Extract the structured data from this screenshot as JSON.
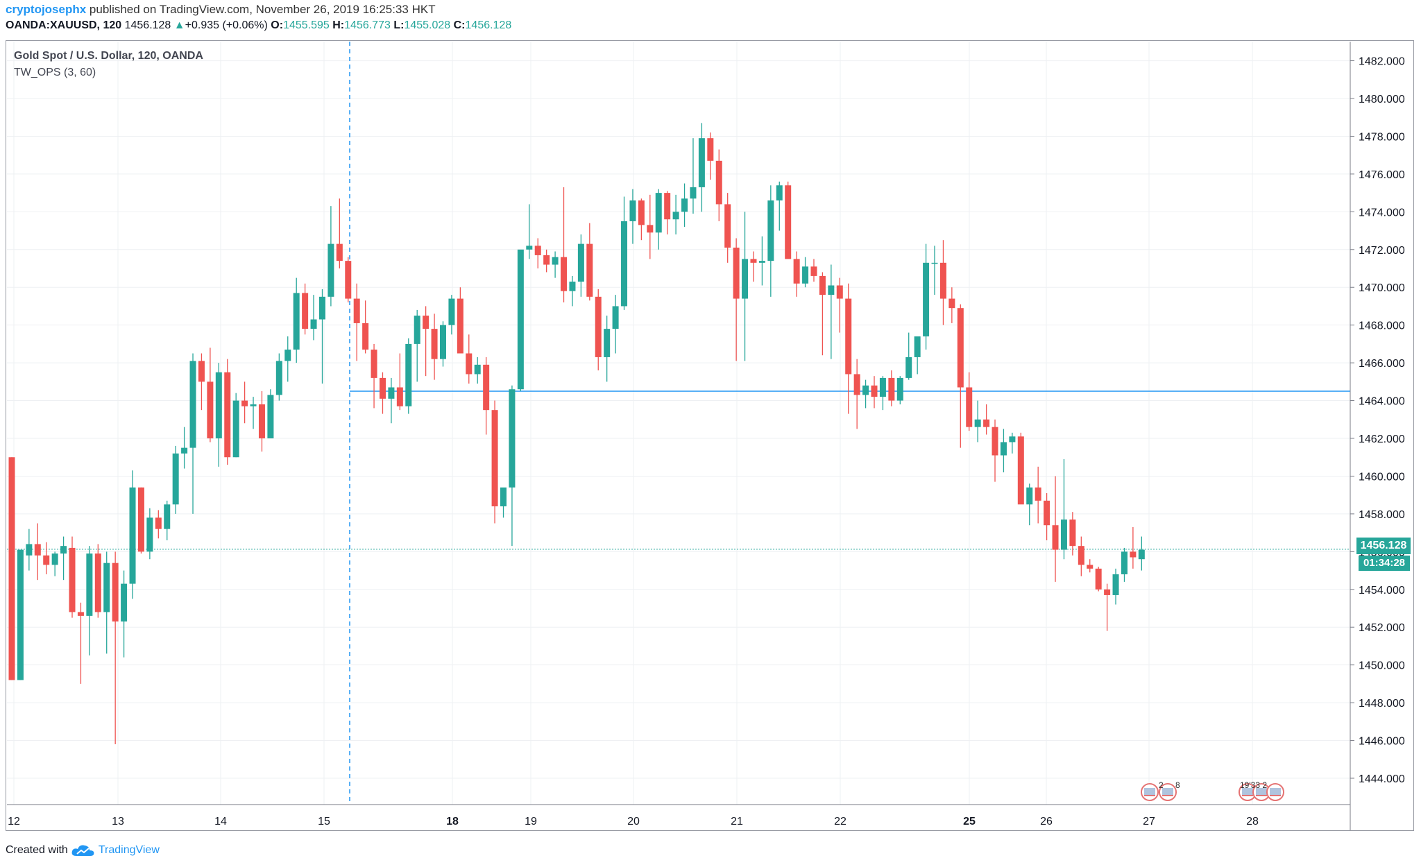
{
  "header": {
    "user": "cryptojosephx",
    "published": " published on TradingView.com, November 26, 2019 16:25:33 HKT",
    "symbol": "OANDA:XAUUSD, 120",
    "last": "1456.128",
    "change_arrow": "▲",
    "change": "+0.935 (+0.06%)",
    "o_label": "O:",
    "o_value": "1455.595",
    "h_label": "H:",
    "h_value": "1456.773",
    "l_label": "L:",
    "l_value": "1455.028",
    "c_label": "C:",
    "c_value": "1456.128"
  },
  "legend": {
    "title": "Gold Spot / U.S. Dollar, 120, OANDA",
    "indicator": "TW_OPS (3, 60)"
  },
  "price_tag": "1456.128",
  "timer_tag": "01:34:28",
  "events": [
    "2",
    "8",
    "19'33 2"
  ],
  "footer": {
    "created_with": "Created with",
    "brand": "TradingView"
  },
  "colors": {
    "up": "#26a69a",
    "down": "#ef5350",
    "line": "#2196f3",
    "grid": "#eef0f3"
  },
  "chart_data": {
    "type": "candlestick",
    "title": "Gold Spot / U.S. Dollar, 120, OANDA",
    "ylim": [
      1442,
      1482.5
    ],
    "y_ticks": [
      "1444.000",
      "1446.000",
      "1448.000",
      "1450.000",
      "1452.000",
      "1454.000",
      "1456.000",
      "1458.000",
      "1460.000",
      "1462.000",
      "1464.000",
      "1466.000",
      "1468.000",
      "1470.000",
      "1472.000",
      "1474.000",
      "1476.000",
      "1478.000",
      "1480.000",
      "1482.000"
    ],
    "x_ticks": [
      "12",
      "13",
      "14",
      "15",
      "18",
      "19",
      "20",
      "21",
      "22",
      "25",
      "26",
      "27",
      "28"
    ],
    "horizontal_levels": [
      1464.5,
      1456.128
    ],
    "candles": [
      [
        1461.0,
        1461.0,
        1449.2,
        1449.2
      ],
      [
        1449.2,
        1456.1,
        1449.2,
        1456.1
      ],
      [
        1455.8,
        1457.2,
        1455.0,
        1456.4
      ],
      [
        1456.4,
        1457.5,
        1454.5,
        1455.8
      ],
      [
        1455.8,
        1456.5,
        1454.8,
        1455.3
      ],
      [
        1455.3,
        1456.0,
        1454.7,
        1455.9
      ],
      [
        1455.9,
        1456.8,
        1454.5,
        1456.3
      ],
      [
        1456.2,
        1456.8,
        1452.5,
        1452.8
      ],
      [
        1452.8,
        1453.3,
        1449.0,
        1452.6
      ],
      [
        1452.6,
        1456.3,
        1450.5,
        1455.9
      ],
      [
        1455.9,
        1456.4,
        1452.5,
        1452.8
      ],
      [
        1452.8,
        1456.0,
        1450.6,
        1455.4
      ],
      [
        1455.4,
        1456.0,
        1445.8,
        1452.3
      ],
      [
        1452.3,
        1455.0,
        1450.4,
        1454.3
      ],
      [
        1454.3,
        1460.3,
        1453.5,
        1459.4
      ],
      [
        1459.4,
        1459.4,
        1455.9,
        1456.0
      ],
      [
        1456.0,
        1458.3,
        1455.6,
        1457.8
      ],
      [
        1457.8,
        1458.2,
        1456.7,
        1457.2
      ],
      [
        1457.2,
        1458.7,
        1456.6,
        1458.5
      ],
      [
        1458.5,
        1461.6,
        1458.0,
        1461.2
      ],
      [
        1461.2,
        1462.6,
        1460.4,
        1461.5
      ],
      [
        1461.5,
        1466.5,
        1458.0,
        1466.1
      ],
      [
        1466.1,
        1466.5,
        1463.5,
        1465.0
      ],
      [
        1465.0,
        1466.8,
        1461.8,
        1462.0
      ],
      [
        1462.0,
        1466.0,
        1460.5,
        1465.5
      ],
      [
        1465.5,
        1466.2,
        1460.6,
        1461.0
      ],
      [
        1461.0,
        1464.4,
        1461.0,
        1464.0
      ],
      [
        1464.0,
        1465.0,
        1462.8,
        1463.7
      ],
      [
        1463.7,
        1464.2,
        1462.5,
        1463.8
      ],
      [
        1463.8,
        1464.5,
        1461.3,
        1462.0
      ],
      [
        1462.0,
        1464.6,
        1462.0,
        1464.3
      ],
      [
        1464.3,
        1466.5,
        1464.0,
        1466.1
      ],
      [
        1466.1,
        1467.4,
        1465.0,
        1466.7
      ],
      [
        1466.7,
        1470.5,
        1466.0,
        1469.7
      ],
      [
        1469.7,
        1470.2,
        1467.5,
        1467.8
      ],
      [
        1467.8,
        1469.6,
        1467.2,
        1468.3
      ],
      [
        1468.3,
        1469.9,
        1464.9,
        1469.5
      ],
      [
        1469.5,
        1474.3,
        1469.0,
        1472.3
      ],
      [
        1472.3,
        1474.7,
        1471.0,
        1471.4
      ],
      [
        1471.4,
        1471.6,
        1469.2,
        1469.4
      ],
      [
        1469.4,
        1470.2,
        1466.1,
        1468.1
      ],
      [
        1468.1,
        1469.3,
        1466.5,
        1466.7
      ],
      [
        1466.7,
        1467.0,
        1463.6,
        1465.2
      ],
      [
        1465.2,
        1465.5,
        1463.3,
        1464.1
      ],
      [
        1464.1,
        1465.2,
        1462.8,
        1464.7
      ],
      [
        1464.7,
        1466.5,
        1463.5,
        1463.7
      ],
      [
        1463.7,
        1467.3,
        1463.3,
        1467.0
      ],
      [
        1467.0,
        1468.8,
        1465.0,
        1468.5
      ],
      [
        1468.5,
        1469.0,
        1465.3,
        1467.8
      ],
      [
        1467.8,
        1468.6,
        1465.1,
        1466.2
      ],
      [
        1466.2,
        1468.2,
        1465.8,
        1468.0
      ],
      [
        1468.0,
        1469.6,
        1467.5,
        1469.4
      ],
      [
        1469.4,
        1470.0,
        1466.8,
        1466.5
      ],
      [
        1466.5,
        1467.5,
        1464.9,
        1465.4
      ],
      [
        1465.4,
        1466.3,
        1464.9,
        1465.9
      ],
      [
        1465.9,
        1466.3,
        1462.2,
        1463.5
      ],
      [
        1463.5,
        1464.0,
        1457.5,
        1458.4
      ],
      [
        1458.4,
        1459.2,
        1457.8,
        1459.4
      ],
      [
        1459.4,
        1464.8,
        1456.3,
        1464.6
      ],
      [
        1464.6,
        1471.6,
        1464.5,
        1472.0
      ],
      [
        1472.0,
        1474.4,
        1471.5,
        1472.2
      ],
      [
        1472.2,
        1472.6,
        1471.0,
        1471.7
      ],
      [
        1471.7,
        1472.0,
        1470.8,
        1471.2
      ],
      [
        1471.2,
        1471.9,
        1470.5,
        1471.6
      ],
      [
        1471.6,
        1475.3,
        1469.2,
        1469.8
      ],
      [
        1469.8,
        1470.6,
        1469.0,
        1470.3
      ],
      [
        1470.3,
        1472.8,
        1469.5,
        1472.3
      ],
      [
        1472.3,
        1473.4,
        1469.3,
        1469.5
      ],
      [
        1469.5,
        1469.9,
        1465.6,
        1466.3
      ],
      [
        1466.3,
        1468.5,
        1465.0,
        1467.8
      ],
      [
        1467.8,
        1469.6,
        1466.5,
        1469.0
      ],
      [
        1469.0,
        1474.8,
        1468.8,
        1473.5
      ],
      [
        1473.5,
        1475.2,
        1472.3,
        1474.6
      ],
      [
        1474.6,
        1474.7,
        1472.5,
        1473.3
      ],
      [
        1473.3,
        1474.9,
        1471.5,
        1472.9
      ],
      [
        1472.9,
        1475.2,
        1472.0,
        1475.0
      ],
      [
        1475.0,
        1475.1,
        1472.8,
        1473.6
      ],
      [
        1473.6,
        1474.9,
        1472.8,
        1474.0
      ],
      [
        1474.0,
        1475.5,
        1473.2,
        1474.7
      ],
      [
        1474.7,
        1477.9,
        1473.9,
        1475.3
      ],
      [
        1475.3,
        1478.7,
        1474.0,
        1477.9
      ],
      [
        1477.9,
        1478.2,
        1475.7,
        1476.7
      ],
      [
        1476.7,
        1477.3,
        1473.5,
        1474.4
      ],
      [
        1474.4,
        1475.0,
        1471.3,
        1472.1
      ],
      [
        1472.1,
        1472.6,
        1466.1,
        1469.4
      ],
      [
        1469.4,
        1474.0,
        1466.1,
        1471.5
      ],
      [
        1471.5,
        1471.9,
        1470.3,
        1471.3
      ],
      [
        1471.3,
        1472.7,
        1470.1,
        1471.4
      ],
      [
        1471.4,
        1475.4,
        1469.5,
        1474.6
      ],
      [
        1474.6,
        1475.6,
        1473.0,
        1475.4
      ],
      [
        1475.4,
        1475.6,
        1471.6,
        1471.5
      ],
      [
        1471.5,
        1471.9,
        1469.5,
        1470.2
      ],
      [
        1470.2,
        1471.6,
        1470.0,
        1471.1
      ],
      [
        1471.1,
        1471.5,
        1470.3,
        1470.6
      ],
      [
        1470.6,
        1470.8,
        1466.4,
        1469.6
      ],
      [
        1469.6,
        1471.2,
        1466.2,
        1470.1
      ],
      [
        1470.1,
        1470.5,
        1467.6,
        1469.4
      ],
      [
        1469.4,
        1470.2,
        1463.3,
        1465.4
      ],
      [
        1465.4,
        1466.2,
        1462.5,
        1464.3
      ],
      [
        1464.3,
        1465.1,
        1463.6,
        1464.8
      ],
      [
        1464.8,
        1465.3,
        1463.6,
        1464.2
      ],
      [
        1464.2,
        1465.3,
        1463.5,
        1465.2
      ],
      [
        1465.2,
        1465.6,
        1463.7,
        1464.0
      ],
      [
        1464.0,
        1465.3,
        1463.8,
        1465.2
      ],
      [
        1465.2,
        1467.6,
        1465.1,
        1466.3
      ],
      [
        1466.3,
        1467.2,
        1465.4,
        1467.4
      ],
      [
        1467.4,
        1472.3,
        1466.7,
        1471.3
      ],
      [
        1471.3,
        1472.2,
        1469.6,
        1471.3
      ],
      [
        1471.3,
        1472.5,
        1468.0,
        1469.4
      ],
      [
        1469.4,
        1470.0,
        1468.1,
        1468.9
      ],
      [
        1468.9,
        1469.1,
        1461.5,
        1464.7
      ],
      [
        1464.7,
        1465.5,
        1462.4,
        1462.6
      ],
      [
        1462.6,
        1464.0,
        1461.8,
        1463.0
      ],
      [
        1463.0,
        1463.8,
        1462.2,
        1462.6
      ],
      [
        1462.6,
        1463.0,
        1459.7,
        1461.1
      ],
      [
        1461.1,
        1462.5,
        1460.2,
        1461.8
      ],
      [
        1461.8,
        1462.3,
        1461.2,
        1462.1
      ],
      [
        1462.1,
        1462.3,
        1458.6,
        1458.5
      ],
      [
        1458.5,
        1459.6,
        1457.4,
        1459.4
      ],
      [
        1459.4,
        1460.5,
        1457.5,
        1458.7
      ],
      [
        1458.7,
        1459.1,
        1456.6,
        1457.4
      ],
      [
        1457.4,
        1460.0,
        1454.4,
        1456.1
      ],
      [
        1456.1,
        1460.9,
        1455.6,
        1457.7
      ],
      [
        1457.7,
        1458.1,
        1455.8,
        1456.3
      ],
      [
        1456.3,
        1456.8,
        1454.7,
        1455.3
      ],
      [
        1455.3,
        1455.6,
        1454.9,
        1455.1
      ],
      [
        1455.1,
        1455.2,
        1453.9,
        1454.0
      ],
      [
        1454.0,
        1454.3,
        1451.8,
        1453.7
      ],
      [
        1453.7,
        1455.1,
        1453.2,
        1454.8
      ],
      [
        1454.8,
        1456.2,
        1454.4,
        1456.0
      ],
      [
        1456.0,
        1457.3,
        1455.1,
        1455.7
      ],
      [
        1455.6,
        1456.8,
        1455.0,
        1456.1
      ]
    ]
  }
}
